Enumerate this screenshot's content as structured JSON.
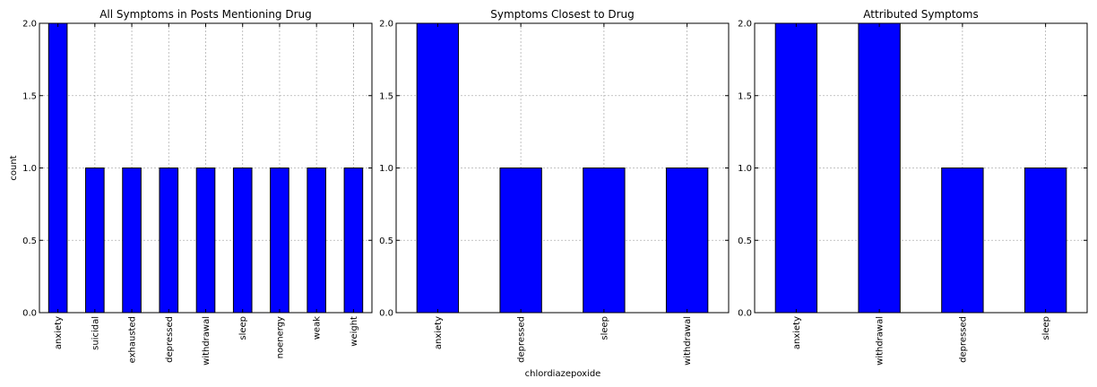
{
  "figure": {
    "xlabel": "chlordiazepoxide"
  },
  "chart_data": [
    {
      "type": "bar",
      "title": "All Symptoms in Posts Mentioning Drug",
      "ylabel": "count",
      "xlabel": "",
      "categories": [
        "anxiety",
        "suicidal",
        "exhausted",
        "depressed",
        "withdrawal",
        "sleep",
        "noenergy",
        "weak",
        "weight"
      ],
      "values": [
        2,
        1,
        1,
        1,
        1,
        1,
        1,
        1,
        1
      ],
      "ylim": [
        0,
        2
      ],
      "yticks": [
        "0.0",
        "0.5",
        "1.0",
        "1.5",
        "2.0"
      ],
      "grid": true,
      "color": "#0000ff"
    },
    {
      "type": "bar",
      "title": "Symptoms Closest to Drug",
      "ylabel": "",
      "xlabel": "",
      "categories": [
        "anxiety",
        "depressed",
        "sleep",
        "withdrawal"
      ],
      "values": [
        2,
        1,
        1,
        1
      ],
      "ylim": [
        0,
        2
      ],
      "yticks": [
        "0.0",
        "0.5",
        "1.0",
        "1.5",
        "2.0"
      ],
      "grid": true,
      "color": "#0000ff"
    },
    {
      "type": "bar",
      "title": "Attributed Symptoms",
      "ylabel": "",
      "xlabel": "",
      "categories": [
        "anxiety",
        "withdrawal",
        "depressed",
        "sleep"
      ],
      "values": [
        2,
        2,
        1,
        1
      ],
      "ylim": [
        0,
        2
      ],
      "yticks": [
        "0.0",
        "0.5",
        "1.0",
        "1.5",
        "2.0"
      ],
      "grid": true,
      "color": "#0000ff"
    }
  ]
}
